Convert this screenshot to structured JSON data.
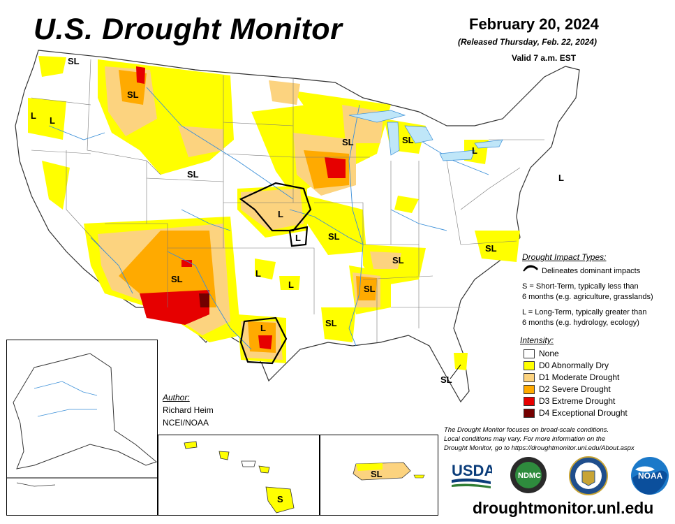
{
  "header": {
    "title": "U.S. Drought Monitor",
    "date": "February 20, 2024",
    "released": "(Released Thursday, Feb. 22, 2024)",
    "valid": "Valid 7 a.m. EST"
  },
  "impact_types": {
    "title": "Drought Impact Types:",
    "delineates": "Delineates dominant impacts",
    "short_term": "S = Short-Term, typically less than",
    "short_term_2": "6 months (e.g. agriculture, grasslands)",
    "long_term": "L = Long-Term, typically greater than",
    "long_term_2": "6 months (e.g. hydrology, ecology)"
  },
  "intensity": {
    "title": "Intensity:",
    "levels": [
      {
        "label": "None",
        "color": "#ffffff"
      },
      {
        "label": "D0 Abnormally Dry",
        "color": "#ffff00"
      },
      {
        "label": "D1 Moderate Drought",
        "color": "#fcd37f"
      },
      {
        "label": "D2 Severe Drought",
        "color": "#ffaa00"
      },
      {
        "label": "D3 Extreme Drought",
        "color": "#e60000"
      },
      {
        "label": "D4 Exceptional Drought",
        "color": "#730000"
      }
    ]
  },
  "author": {
    "label": "Author:",
    "name": "Richard Heim",
    "org": "NCEI/NOAA"
  },
  "note": {
    "line1": "The Drought Monitor focuses on broad-scale conditions.",
    "line2": "Local conditions may vary. For more information on the",
    "line3": "Drought Monitor, go to https://droughtmonitor.unl.edu/About.aspx"
  },
  "logos": {
    "usda": "USDA",
    "ndmc": "NDMC",
    "noaa": "NOAA"
  },
  "footer": {
    "site": "droughtmonitor.unl.edu"
  },
  "map_labels": [
    "SL",
    "SL",
    "L",
    "L",
    "SL",
    "L",
    "SL",
    "L",
    "L",
    "L",
    "SL",
    "SL",
    "SL",
    "L",
    "SL",
    "L",
    "SL",
    "SL",
    "SL",
    "L",
    "SL",
    "L",
    "S",
    "SL"
  ]
}
